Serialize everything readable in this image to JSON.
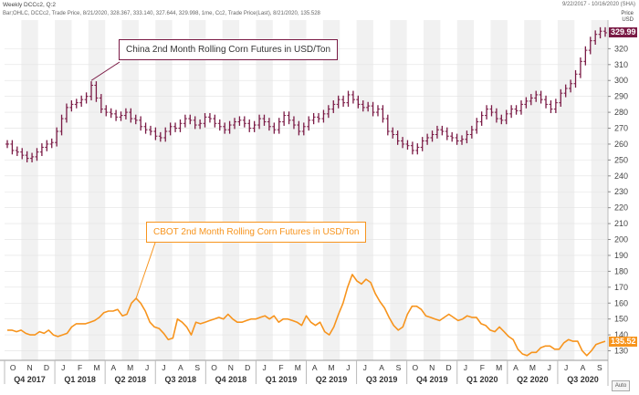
{
  "header": {
    "title": "Weekly DCCc2, Q:2",
    "info": "Bar;OHLC, DCCc2, Trade Price, 8/21/2020, 328.367, 333.140, 327.644, 329.998, 1me, Cc2, Trade Price(Last), 8/21/2020, 135.528",
    "date_range": "9/22/2017 - 10/16/2020 (SHA)",
    "price_unit_1": "Price",
    "price_unit_2": "USD"
  },
  "annotations": {
    "china": "China 2nd Month Rolling Corn Futures in USD/Ton",
    "cbot": "CBOT 2nd Month Rolling Corn Futures in USD/Ton"
  },
  "auto_button": "Auto",
  "colors": {
    "china": "#7a1a45",
    "cbot": "#f7941d",
    "axis": "#555555",
    "band": "#f1f1f1"
  },
  "chart_data": {
    "type": "line",
    "x_axis": {
      "months": [
        "O",
        "N",
        "D",
        "J",
        "F",
        "M",
        "A",
        "M",
        "J",
        "J",
        "A",
        "S",
        "O",
        "N",
        "D",
        "J",
        "F",
        "M",
        "A",
        "M",
        "J",
        "J",
        "A",
        "S",
        "O",
        "N",
        "D",
        "J",
        "F",
        "M",
        "A",
        "M",
        "J",
        "J",
        "A",
        "S"
      ],
      "quarters": [
        "Q4 2017",
        "Q1 2018",
        "Q2 2018",
        "Q3 2018",
        "Q4 2018",
        "Q1 2019",
        "Q2 2019",
        "Q3 2019",
        "Q4 2019",
        "Q1 2020",
        "Q2 2020",
        "Q3 2020"
      ]
    },
    "y_ticks": [
      130,
      140,
      150,
      160,
      170,
      180,
      190,
      200,
      210,
      220,
      230,
      240,
      250,
      260,
      270,
      280,
      290,
      300,
      310,
      320
    ],
    "ylim": [
      124,
      338
    ],
    "grid": true,
    "last_values": {
      "china": "329.99",
      "cbot": "135.52"
    },
    "series": [
      {
        "key": "china",
        "style": "ohlc",
        "values": [
          260,
          256,
          255,
          253,
          251,
          252,
          255,
          258,
          260,
          261,
          268,
          276,
          283,
          285,
          286,
          288,
          290,
          297,
          289,
          282,
          280,
          279,
          277,
          278,
          280,
          276,
          275,
          271,
          269,
          268,
          265,
          264,
          268,
          271,
          270,
          273,
          276,
          275,
          272,
          273,
          277,
          276,
          273,
          271,
          269,
          272,
          274,
          275,
          273,
          270,
          272,
          276,
          274,
          271,
          269,
          274,
          278,
          275,
          272,
          268,
          271,
          275,
          277,
          276,
          279,
          282,
          285,
          288,
          286,
          291,
          288,
          285,
          283,
          284,
          280,
          282,
          276,
          268,
          266,
          262,
          260,
          259,
          256,
          258,
          262,
          264,
          266,
          269,
          268,
          265,
          264,
          262,
          263,
          266,
          269,
          274,
          278,
          282,
          280,
          276,
          275,
          279,
          282,
          281,
          285,
          287,
          289,
          291,
          288,
          285,
          282,
          286,
          292,
          295,
          298,
          304,
          312,
          319,
          325,
          329,
          331,
          330
        ]
      },
      {
        "key": "cbot",
        "style": "line",
        "values": [
          143,
          143,
          142,
          143,
          141,
          140,
          140,
          142,
          141,
          143,
          140,
          139,
          140,
          141,
          145,
          147,
          147,
          147,
          148,
          149,
          151,
          154,
          155,
          155,
          156,
          152,
          153,
          160,
          163,
          160,
          155,
          148,
          145,
          144,
          141,
          137,
          138,
          150,
          148,
          145,
          140,
          148,
          147,
          148,
          149,
          150,
          151,
          150,
          153,
          150,
          148,
          148,
          149,
          150,
          150,
          151,
          152,
          150,
          152,
          148,
          150,
          150,
          149,
          148,
          146,
          152,
          148,
          146,
          148,
          142,
          140,
          145,
          153,
          160,
          170,
          178,
          174,
          172,
          175,
          173,
          166,
          161,
          157,
          151,
          146,
          143,
          145,
          153,
          158,
          158,
          156,
          152,
          151,
          150,
          149,
          151,
          153,
          151,
          149,
          150,
          152,
          151,
          151,
          147,
          146,
          143,
          142,
          145,
          142,
          139,
          137,
          131,
          128,
          127,
          129,
          129,
          132,
          133,
          133,
          131,
          131,
          135,
          137,
          136,
          136,
          130,
          127,
          130,
          134,
          135,
          136
        ]
      }
    ]
  }
}
